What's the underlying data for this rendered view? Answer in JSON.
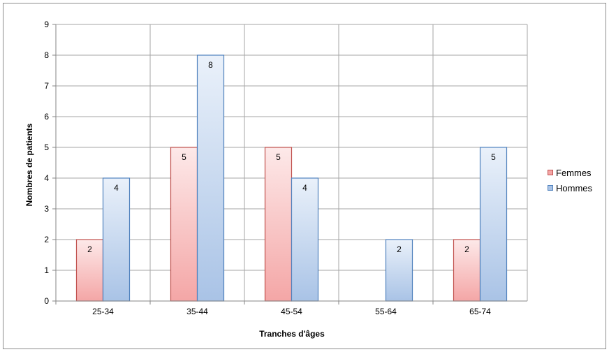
{
  "chart_data": {
    "type": "bar",
    "categories": [
      "25-34",
      "35-44",
      "45-54",
      "55-64",
      "65-74"
    ],
    "series": [
      {
        "name": "Femmes",
        "values": [
          2,
          5,
          5,
          null,
          2
        ],
        "color": "#f4a6a6",
        "border": "#c0504d"
      },
      {
        "name": "Hommes",
        "values": [
          4,
          8,
          4,
          2,
          5
        ],
        "color": "#a9c3e6",
        "border": "#4f81bd"
      }
    ],
    "xlabel": "Tranches d'âges",
    "ylabel": "Nombres de patients",
    "ylim": [
      0,
      9
    ],
    "yticks": [
      0,
      1,
      2,
      3,
      4,
      5,
      6,
      7,
      8,
      9
    ],
    "grid": true,
    "legend_position": "right"
  }
}
